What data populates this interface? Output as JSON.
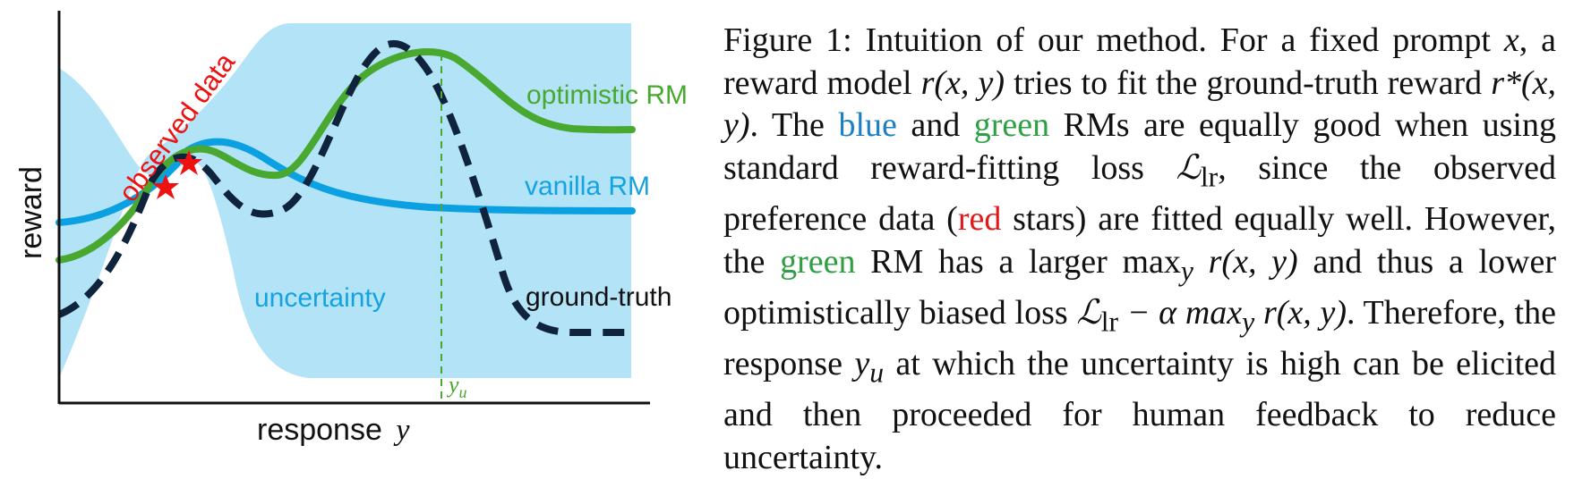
{
  "figure": {
    "axis": {
      "ylabel": "reward",
      "xlabel_text": "response",
      "xlabel_var": "y"
    },
    "labels": {
      "observed_data": "observed data",
      "optimistic_rm": "optimistic RM",
      "vanilla_rm": "vanilla RM",
      "uncertainty": "uncertainty",
      "ground_truth": "ground-truth",
      "y_u_marker": "y",
      "y_u_sub": "u"
    },
    "colors": {
      "uncertainty_band": "#b3e3f7",
      "vanilla_rm": "#0aa0e2",
      "optimistic_rm": "#49a82f",
      "ground_truth": "#0f243c",
      "observed_stars": "#ee1111",
      "observed_label": "#ee1111",
      "vanilla_label": "#14a3e0",
      "optimistic_label": "#49a82f",
      "uncertainty_label": "#14a3e0",
      "ground_truth_label": "#111111"
    }
  },
  "caption": {
    "p01": "Figure 1: Intuition of our method. For a fixed prompt",
    "p02": "x",
    "p03": ", a reward model ",
    "p04": "r(x, y)",
    "p05": " tries to fit the ground-truth reward ",
    "p06": "r*(x, y)",
    "p07": ". The ",
    "p08": "blue",
    "p09": " and ",
    "p10": "green",
    "p11": " RMs are equally good when using standard reward-fitting loss ",
    "p12": "ℒ",
    "p13": "lr",
    "p14": ", since the observed preference data (",
    "p15": "red",
    "p16": " stars) are fitted equally well. However, the ",
    "p17": "green",
    "p18": " RM has a larger ",
    "p19": "max",
    "p20": "y",
    "p21": " r(x, y)",
    "p22": " and thus a lower optimistically biased loss ",
    "p23": "ℒ",
    "p24": "lr",
    "p25": " − α max",
    "p26": "y",
    "p27": " r(x, y)",
    "p28": ". Therefore, the response ",
    "p29": "y",
    "p30": "u",
    "p31": " at which the uncertainty is high can be elicited and then proceeded for human feedback to reduce uncertainty."
  }
}
